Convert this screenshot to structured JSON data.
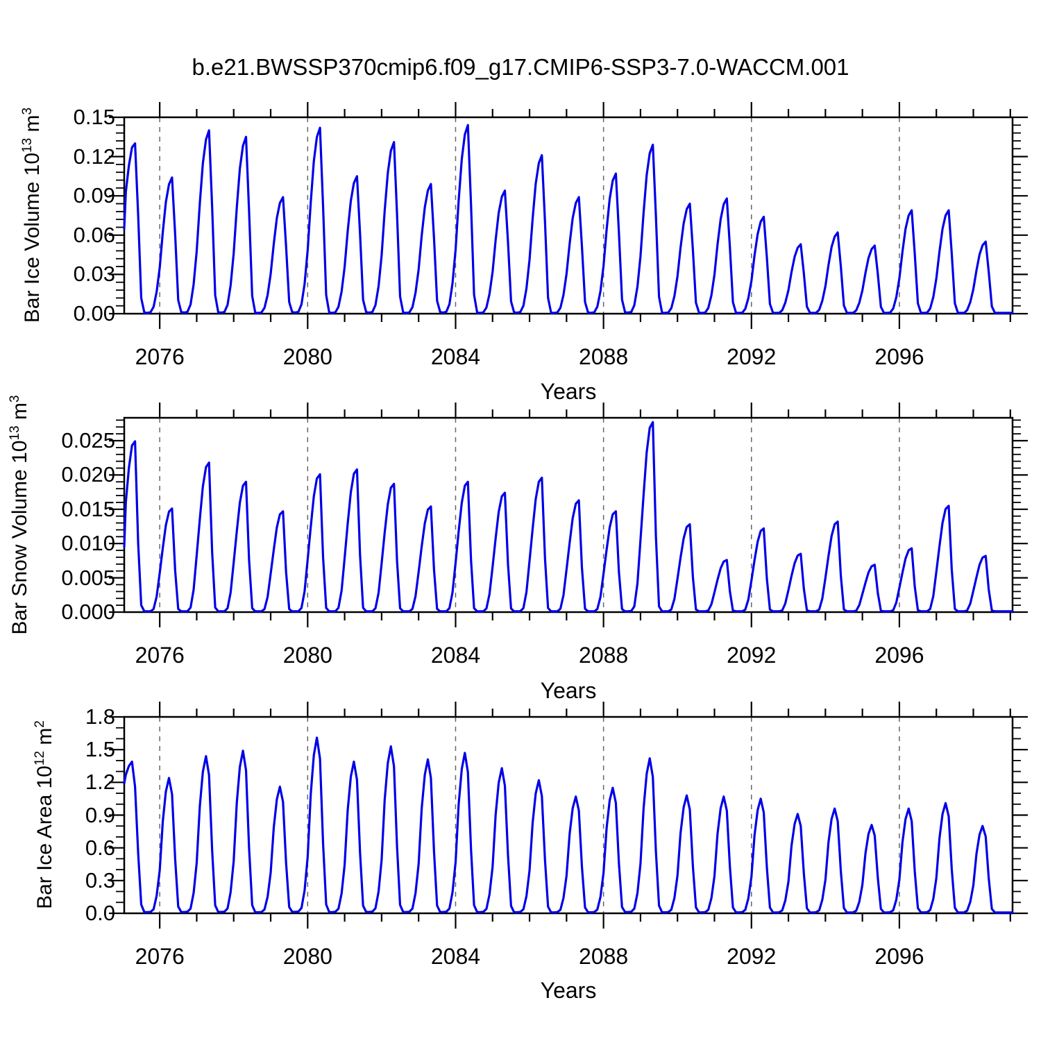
{
  "title": "b.e21.BWSSP370cmip6.f09_g17.CMIP6-SSP3-7.0-WACCM.001",
  "line_color": "#0000e8",
  "grid_color": "#666666",
  "axis_color": "#000000",
  "chart_data": [
    {
      "type": "line",
      "ylabel": {
        "prefix": "Bar Ice Volume 10",
        "exp": "13",
        "unit": " m",
        "unit_exp": "3"
      },
      "xlabel": "Years",
      "xlim": [
        2075.04,
        2099.06
      ],
      "ylim": [
        0,
        0.15
      ],
      "xticks": [
        2076,
        2080,
        2084,
        2088,
        2092,
        2096
      ],
      "xtick_labels": [
        "2076",
        "2080",
        "2084",
        "2088",
        "2092",
        "2096"
      ],
      "x_minor_step": 1,
      "yticks": [
        0,
        0.03,
        0.06,
        0.09,
        0.12,
        0.15
      ],
      "ytick_labels": [
        "0.00",
        "0.03",
        "0.06",
        "0.09",
        "0.12",
        "0.15"
      ],
      "y_minor_step": 0.006,
      "grid_x": [
        2076,
        2080,
        2084,
        2088,
        2092,
        2096
      ],
      "grid_style": "dashed",
      "years": [
        2075,
        2076,
        2077,
        2078,
        2079,
        2080,
        2081,
        2082,
        2083,
        2084,
        2085,
        2086,
        2087,
        2088,
        2089,
        2090,
        2091,
        2092,
        2093,
        2094,
        2095,
        2096,
        2097,
        2098
      ],
      "annual_max": [
        0.13,
        0.104,
        0.14,
        0.135,
        0.089,
        0.142,
        0.105,
        0.131,
        0.099,
        0.144,
        0.094,
        0.121,
        0.089,
        0.107,
        0.129,
        0.084,
        0.088,
        0.074,
        0.053,
        0.062,
        0.052,
        0.079,
        0.079,
        0.055
      ],
      "seasonal_fraction_by_month": [
        0.34,
        0.6,
        0.82,
        0.95,
        1.0,
        0.58,
        0.1,
        0.008,
        0.006,
        0.01,
        0.05,
        0.16
      ],
      "first_year_monthly_jan_jul": [
        0.065,
        0.093,
        0.113,
        0.127,
        0.13,
        0.075,
        0.012
      ]
    },
    {
      "type": "line",
      "ylabel": {
        "prefix": "Bar Snow Volume 10",
        "exp": "13",
        "unit": " m",
        "unit_exp": "3"
      },
      "xlabel": "Years",
      "xlim": [
        2075.04,
        2099.06
      ],
      "ylim": [
        0,
        0.02834
      ],
      "xticks": [
        2076,
        2080,
        2084,
        2088,
        2092,
        2096
      ],
      "xtick_labels": [
        "2076",
        "2080",
        "2084",
        "2088",
        "2092",
        "2096"
      ],
      "x_minor_step": 1,
      "yticks": [
        0,
        0.005,
        0.01,
        0.015,
        0.02,
        0.025
      ],
      "ytick_labels": [
        "0.000",
        "0.005",
        "0.010",
        "0.015",
        "0.020",
        "0.025"
      ],
      "y_minor_step": 0.001,
      "grid_x": [
        2076,
        2080,
        2084,
        2088,
        2092,
        2096
      ],
      "grid_style": "dashed",
      "years": [
        2075,
        2076,
        2077,
        2078,
        2079,
        2080,
        2081,
        2082,
        2083,
        2084,
        2085,
        2086,
        2087,
        2088,
        2089,
        2090,
        2091,
        2092,
        2093,
        2094,
        2095,
        2096,
        2097,
        2098
      ],
      "annual_max": [
        0.0249,
        0.0151,
        0.0218,
        0.019,
        0.0147,
        0.0201,
        0.0208,
        0.0187,
        0.0154,
        0.019,
        0.0174,
        0.0196,
        0.0163,
        0.0147,
        0.0277,
        0.0128,
        0.0076,
        0.0122,
        0.0085,
        0.0132,
        0.0069,
        0.0093,
        0.0155,
        0.0082
      ],
      "seasonal_fraction_by_month": [
        0.38,
        0.62,
        0.84,
        0.97,
        1.0,
        0.4,
        0.03,
        0.004,
        0.004,
        0.006,
        0.03,
        0.15
      ],
      "first_year_monthly_jan_jul": [
        0.0095,
        0.016,
        0.021,
        0.0243,
        0.0249,
        0.01,
        0.001
      ]
    },
    {
      "type": "line",
      "ylabel": {
        "prefix": "Bar Ice Area 10",
        "exp": "12",
        "unit": " m",
        "unit_exp": "2"
      },
      "xlabel": "Years",
      "xlim": [
        2075.04,
        2099.06
      ],
      "ylim": [
        0,
        1.8
      ],
      "xticks": [
        2076,
        2080,
        2084,
        2088,
        2092,
        2096
      ],
      "xtick_labels": [
        "2076",
        "2080",
        "2084",
        "2088",
        "2092",
        "2096"
      ],
      "x_minor_step": 1,
      "yticks": [
        0,
        0.3,
        0.6,
        0.9,
        1.2,
        1.5,
        1.8
      ],
      "ytick_labels": [
        "0.0",
        "0.3",
        "0.6",
        "0.9",
        "1.2",
        "1.5",
        "1.8"
      ],
      "y_minor_step": 0.1,
      "grid_x": [
        2076,
        2080,
        2084,
        2088,
        2092,
        2096
      ],
      "grid_style": "dashed",
      "years": [
        2075,
        2076,
        2077,
        2078,
        2079,
        2080,
        2081,
        2082,
        2083,
        2084,
        2085,
        2086,
        2087,
        2088,
        2089,
        2090,
        2091,
        2092,
        2093,
        2094,
        2095,
        2096,
        2097,
        2098
      ],
      "annual_max": [
        1.39,
        1.24,
        1.44,
        1.49,
        1.16,
        1.61,
        1.39,
        1.53,
        1.41,
        1.47,
        1.33,
        1.22,
        1.07,
        1.15,
        1.42,
        1.08,
        1.07,
        1.05,
        0.91,
        0.96,
        0.81,
        0.96,
        1.01,
        0.8
      ],
      "seasonal_fraction_by_month": [
        0.32,
        0.68,
        0.9,
        1.0,
        0.88,
        0.4,
        0.05,
        0.008,
        0.008,
        0.01,
        0.03,
        0.13
      ],
      "first_year_monthly_jan_jul": [
        1.19,
        1.27,
        1.35,
        1.39,
        1.16,
        0.55,
        0.08
      ]
    }
  ]
}
